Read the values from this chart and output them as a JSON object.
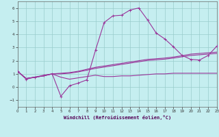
{
  "xlabel": "Windchill (Refroidissement éolien,°C)",
  "bg_color": "#c5eef0",
  "line_color": "#993399",
  "grid_color": "#99cccc",
  "xlim": [
    0,
    23
  ],
  "ylim": [
    -1.5,
    6.5
  ],
  "yticks": [
    -1,
    0,
    1,
    2,
    3,
    4,
    5,
    6
  ],
  "xticks": [
    0,
    1,
    2,
    3,
    4,
    5,
    6,
    7,
    8,
    9,
    10,
    11,
    12,
    13,
    14,
    15,
    16,
    17,
    18,
    19,
    20,
    21,
    22,
    23
  ],
  "line1_x": [
    0,
    1,
    2,
    3,
    4,
    5,
    6,
    7,
    8,
    9,
    10,
    11,
    12,
    13,
    14,
    15,
    16,
    17,
    18,
    19,
    20,
    21,
    22,
    23
  ],
  "line1_y": [
    1.2,
    0.6,
    0.75,
    0.9,
    1.0,
    -0.7,
    0.1,
    0.3,
    0.55,
    2.8,
    4.9,
    5.4,
    5.45,
    5.85,
    6.0,
    5.1,
    4.1,
    3.65,
    3.05,
    2.4,
    2.1,
    2.05,
    2.4,
    3.1
  ],
  "line2_x": [
    0,
    1,
    2,
    3,
    4,
    5,
    6,
    7,
    8,
    9,
    10,
    11,
    12,
    13,
    14,
    15,
    16,
    17,
    18,
    19,
    20,
    21,
    22,
    23
  ],
  "line2_y": [
    1.2,
    0.65,
    0.75,
    0.85,
    1.0,
    1.05,
    1.1,
    1.2,
    1.35,
    1.5,
    1.6,
    1.7,
    1.8,
    1.9,
    2.0,
    2.1,
    2.15,
    2.2,
    2.28,
    2.38,
    2.5,
    2.55,
    2.6,
    2.65
  ],
  "line3_x": [
    0,
    1,
    2,
    3,
    4,
    5,
    6,
    7,
    8,
    9,
    10,
    11,
    12,
    13,
    14,
    15,
    16,
    17,
    18,
    19,
    20,
    21,
    22,
    23
  ],
  "line3_y": [
    1.2,
    0.65,
    0.75,
    0.85,
    1.0,
    1.0,
    1.05,
    1.15,
    1.28,
    1.42,
    1.52,
    1.62,
    1.72,
    1.82,
    1.92,
    2.02,
    2.07,
    2.12,
    2.2,
    2.3,
    2.4,
    2.45,
    2.5,
    2.55
  ],
  "line4_x": [
    0,
    1,
    2,
    3,
    4,
    5,
    6,
    7,
    8,
    9,
    10,
    11,
    12,
    13,
    14,
    15,
    16,
    17,
    18,
    19,
    20,
    21,
    22,
    23
  ],
  "line4_y": [
    1.2,
    0.65,
    0.75,
    0.85,
    1.0,
    0.75,
    0.6,
    0.7,
    0.8,
    0.9,
    0.8,
    0.8,
    0.85,
    0.85,
    0.9,
    0.95,
    1.0,
    1.0,
    1.05,
    1.05,
    1.05,
    1.05,
    1.05,
    1.05
  ]
}
